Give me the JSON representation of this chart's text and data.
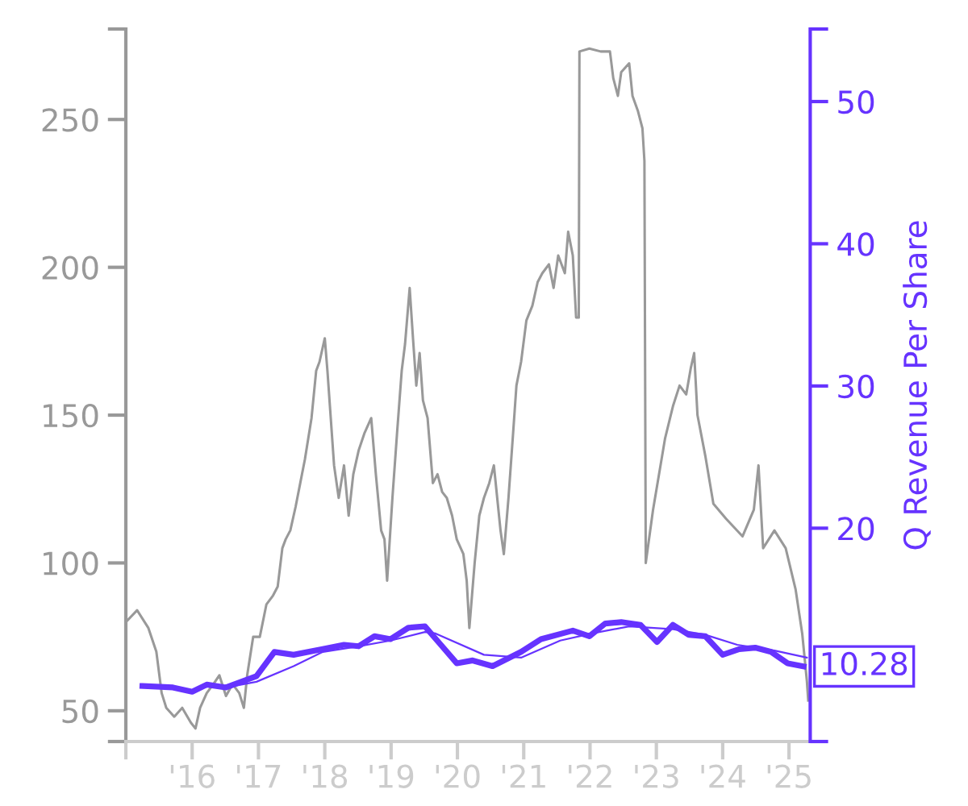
{
  "chart_data": {
    "type": "line",
    "y2label": "Q Revenue Per Share",
    "xlim": [
      2015.0,
      2025.32
    ],
    "xticks": [
      {
        "value": 2015,
        "label": null
      },
      {
        "value": 2016,
        "label": "'16"
      },
      {
        "value": 2017,
        "label": "'17"
      },
      {
        "value": 2018,
        "label": "'18"
      },
      {
        "value": 2019,
        "label": "'19"
      },
      {
        "value": 2020,
        "label": "'20"
      },
      {
        "value": 2021,
        "label": "'21"
      },
      {
        "value": 2022,
        "label": "'22"
      },
      {
        "value": 2023,
        "label": "'23"
      },
      {
        "value": 2024,
        "label": "'24"
      },
      {
        "value": 2025,
        "label": "'25"
      }
    ],
    "ylim": [
      39.6,
      280.6
    ],
    "yticks": [
      {
        "value": 39.6,
        "label": null
      },
      50,
      100,
      150,
      200,
      250,
      {
        "value": 280.6,
        "label": null
      }
    ],
    "y2lim": [
      5.0,
      55.1
    ],
    "y2ticks": [
      {
        "value": 5.0,
        "label": null
      },
      20,
      30,
      40,
      50,
      {
        "value": 55.1,
        "label": null
      }
    ],
    "grid": false,
    "legend": false,
    "marker": "none",
    "line_style": "solid",
    "series": [
      {
        "color": "#999999",
        "x": [
          2015.0,
          2015.17,
          2015.34,
          2015.46,
          2015.54,
          2015.61,
          2015.73,
          2015.85,
          2015.98,
          2016.05,
          2016.12,
          2016.22,
          2016.32,
          2016.41,
          2016.51,
          2016.61,
          2016.71,
          2016.78,
          2016.83,
          2016.92,
          2017.02,
          2017.12,
          2017.22,
          2017.29,
          2017.36,
          2017.41,
          2017.48,
          2017.56,
          2017.63,
          2017.7,
          2017.8,
          2017.87,
          2017.92,
          2018.0,
          2018.04,
          2018.09,
          2018.14,
          2018.21,
          2018.29,
          2018.36,
          2018.43,
          2018.51,
          2018.6,
          2018.7,
          2018.77,
          2018.85,
          2018.9,
          2018.94,
          2019.02,
          2019.09,
          2019.16,
          2019.21,
          2019.28,
          2019.33,
          2019.38,
          2019.43,
          2019.48,
          2019.55,
          2019.63,
          2019.7,
          2019.77,
          2019.84,
          2019.92,
          2019.99,
          2020.09,
          2020.14,
          2020.18,
          2020.26,
          2020.33,
          2020.4,
          2020.48,
          2020.55,
          2020.6,
          2020.65,
          2020.7,
          2020.77,
          2020.84,
          2020.89,
          2020.96,
          2021.04,
          2021.13,
          2021.21,
          2021.28,
          2021.38,
          2021.45,
          2021.52,
          2021.62,
          2021.67,
          2021.74,
          2021.79,
          2021.83,
          2021.84,
          2021.99,
          2022.16,
          2022.3,
          2022.35,
          2022.42,
          2022.47,
          2022.59,
          2022.64,
          2022.72,
          2022.79,
          2022.82,
          2022.84,
          2022.95,
          2023.13,
          2023.25,
          2023.35,
          2023.45,
          2023.52,
          2023.57,
          2023.62,
          2023.74,
          2023.86,
          2024.05,
          2024.3,
          2024.47,
          2024.54,
          2024.61,
          2024.78,
          2024.95,
          2025.1,
          2025.2,
          2025.27,
          2025.29
        ],
        "values": [
          80,
          84,
          78,
          70,
          56,
          51,
          48,
          51,
          46,
          44,
          51,
          56,
          59,
          62,
          55,
          59,
          56,
          51,
          62,
          75,
          75,
          86,
          89,
          92,
          105,
          108,
          111,
          119,
          127,
          135,
          149,
          165,
          168,
          176,
          165,
          149,
          133,
          122,
          133,
          116,
          130,
          138,
          144,
          149,
          130,
          111,
          108,
          94,
          122,
          144,
          165,
          174,
          193,
          176,
          160,
          171,
          155,
          149,
          127,
          130,
          124,
          122,
          116,
          108,
          103,
          94,
          78,
          100,
          116,
          122,
          127,
          133,
          122,
          111,
          103,
          122,
          144,
          160,
          168,
          182,
          187,
          195,
          198,
          201,
          193,
          204,
          198,
          212,
          204,
          183,
          183,
          273,
          274,
          273,
          273,
          264,
          258,
          266,
          269,
          258,
          253,
          247,
          236,
          100,
          118,
          142,
          153,
          160,
          157,
          166,
          171,
          150,
          136,
          120,
          115,
          109,
          118,
          133,
          105,
          111,
          105,
          91,
          76,
          60,
          53.5
        ]
      },
      {
        "color": "#6633ff",
        "axis": "y2",
        "x": [
          2015.25,
          2015.71,
          2016.0,
          2016.22,
          2016.51,
          2016.97,
          2017.24,
          2017.53,
          2017.97,
          2018.29,
          2018.51,
          2018.75,
          2018.99,
          2019.26,
          2019.51,
          2019.75,
          2019.99,
          2020.23,
          2020.53,
          2020.96,
          2021.26,
          2021.74,
          2021.99,
          2022.23,
          2022.47,
          2022.76,
          2023.01,
          2023.25,
          2023.49,
          2023.74,
          2024.0,
          2024.25,
          2024.49,
          2024.73,
          2024.98,
          2025.22
        ],
        "values": [
          8.9,
          8.8,
          8.5,
          9.0,
          8.8,
          9.6,
          11.3,
          11.1,
          11.5,
          11.8,
          11.7,
          12.4,
          12.2,
          13.0,
          13.1,
          11.8,
          10.5,
          10.7,
          10.3,
          11.3,
          12.2,
          12.8,
          12.4,
          13.3,
          13.4,
          13.2,
          12.0,
          13.2,
          12.5,
          12.4,
          11.1,
          11.5,
          11.6,
          11.3,
          10.5,
          10.28
        ],
        "value_labels": [
          null,
          null,
          null,
          null,
          null,
          null,
          null,
          null,
          null,
          null,
          null,
          null,
          null,
          null,
          null,
          null,
          null,
          null,
          null,
          null,
          null,
          null,
          null,
          null,
          null,
          null,
          null,
          null,
          null,
          null,
          null,
          null,
          null,
          null,
          null,
          "10.28"
        ]
      },
      {
        "color": "#6633ff",
        "axis": "y2",
        "x": [
          2016.51,
          2016.97,
          2017.53,
          2017.97,
          2018.51,
          2018.99,
          2019.51,
          2019.67,
          2020.4,
          2020.96,
          2021.55,
          2022.03,
          2022.59,
          2023.25,
          2023.74,
          2024.22,
          2024.78,
          2025.27
        ],
        "values": [
          8.8,
          9.2,
          10.3,
          11.3,
          11.7,
          12.1,
          12.7,
          12.6,
          11.1,
          10.9,
          12.1,
          12.6,
          13.1,
          12.9,
          12.5,
          11.8,
          11.4,
          10.9
        ]
      }
    ]
  }
}
